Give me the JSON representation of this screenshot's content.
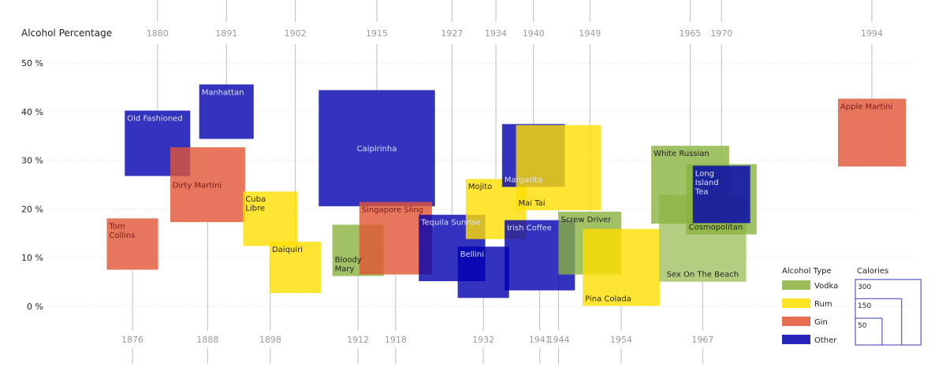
{
  "chart_data": {
    "type": "scatter",
    "title": "",
    "ylabel": "Alcohol Percentage",
    "xlabel": "",
    "yticks": [
      "50 %",
      "40 %",
      "30 %",
      "20 %",
      "10 %",
      "0 %"
    ],
    "ylim": [
      0,
      50
    ],
    "xlim": [
      1866,
      2002
    ],
    "legend": {
      "type_title": "Alcohol Type",
      "size_title": "Calories",
      "types": [
        {
          "key": "vodka",
          "label": "Vodka",
          "color": "#8ab23e"
        },
        {
          "key": "rum",
          "label": "Rum",
          "color": "#ffdf00"
        },
        {
          "key": "gin",
          "label": "Gin",
          "color": "#e05535"
        },
        {
          "key": "other",
          "label": "Other",
          "color": "#0000b0"
        }
      ],
      "sizes": [
        {
          "label": "300",
          "calories": 300
        },
        {
          "label": "150",
          "calories": 150
        },
        {
          "label": "50",
          "calories": 50
        }
      ],
      "position": "bottom-right"
    },
    "points": [
      {
        "name": "Tom Collins",
        "year": 1876,
        "alcohol": 12.8,
        "calories": 40,
        "type": "gin",
        "label_pos": "top",
        "year_label": "bottom"
      },
      {
        "name": "Old Fashioned",
        "year": 1880,
        "alcohol": 33.5,
        "calories": 65,
        "type": "other",
        "label_pos": "top",
        "year_label": "top"
      },
      {
        "name": "Dirty Martini",
        "year": 1888,
        "alcohol": 25.0,
        "calories": 85,
        "type": "gin",
        "label_pos": "center",
        "year_label": "bottom"
      },
      {
        "name": "Manhattan",
        "year": 1891,
        "alcohol": 40.0,
        "calories": 45,
        "type": "other",
        "label_pos": "top",
        "year_label": "top"
      },
      {
        "name": "Cuba Libre",
        "year": 1898,
        "alcohol": 18.0,
        "calories": 45,
        "type": "rum",
        "label_pos": "top",
        "year_label": "bottom"
      },
      {
        "name": "Daiquiri",
        "year": 1902,
        "alcohol": 8.0,
        "calories": 40,
        "type": "rum",
        "label_pos": "top",
        "year_label": "top"
      },
      {
        "name": "Bloody Mary",
        "year": 1912,
        "alcohol": 11.5,
        "calories": 40,
        "type": "vodka",
        "label_pos": "bottom",
        "year_label": "bottom"
      },
      {
        "name": "Caipirinha",
        "year": 1915,
        "alcohol": 32.5,
        "calories": 205,
        "type": "other",
        "label_pos": "center",
        "year_label": "top"
      },
      {
        "name": "Singapore Sling",
        "year": 1918,
        "alcohol": 14.0,
        "calories": 80,
        "type": "gin",
        "label_pos": "top",
        "year_label": "bottom"
      },
      {
        "name": "Tequila Sunrise",
        "year": 1927,
        "alcohol": 12.0,
        "calories": 67,
        "type": "other",
        "label_pos": "top",
        "year_label": "top"
      },
      {
        "name": "Bellini",
        "year": 1932,
        "alcohol": 7.0,
        "calories": 40,
        "type": "other",
        "label_pos": "top",
        "year_label": "bottom"
      },
      {
        "name": "Mojito",
        "year": 1934,
        "alcohol": 20.0,
        "calories": 55,
        "type": "rum",
        "label_pos": "top",
        "year_label": "top"
      },
      {
        "name": "Margarita",
        "year": 1940,
        "alcohol": 31.0,
        "calories": 60,
        "type": "other",
        "label_pos": "bottom",
        "year_label": "top"
      },
      {
        "name": "Irish Coffee",
        "year": 1941,
        "alcohol": 10.5,
        "calories": 75,
        "type": "other",
        "label_pos": "top",
        "year_label": "bottom"
      },
      {
        "name": "Mai Tai",
        "year": 1944,
        "alcohol": 28.5,
        "calories": 110,
        "type": "rum",
        "label_pos": "bottom",
        "year_label": "bottom"
      },
      {
        "name": "Screw Driver",
        "year": 1949,
        "alcohol": 13.0,
        "calories": 60,
        "type": "vodka",
        "label_pos": "top",
        "year_label": "top"
      },
      {
        "name": "Pina Colada",
        "year": 1954,
        "alcohol": 8.0,
        "calories": 90,
        "type": "rum",
        "label_pos": "bottom",
        "year_label": "bottom"
      },
      {
        "name": "White Russian",
        "year": 1965,
        "alcohol": 25.0,
        "calories": 92,
        "type": "vodka",
        "label_pos": "top",
        "year_label": "top"
      },
      {
        "name": "Sex On The Beach",
        "year": 1967,
        "alcohol": 14.0,
        "calories": 115,
        "type": "vodka",
        "label_pos": "bottom",
        "year_label": "bottom",
        "light": true
      },
      {
        "name": "Cosmopolitan",
        "year": 1970,
        "alcohol": 22.0,
        "calories": 75,
        "type": "vodka",
        "label_pos": "bottom",
        "year_label": "top"
      },
      {
        "name": "Long Island Tea",
        "year": 1970,
        "alcohol": 23.0,
        "calories": 50,
        "type": "other",
        "label_pos": "top",
        "year_label": "none"
      },
      {
        "name": "Apple Martini",
        "year": 1994,
        "alcohol": 35.7,
        "calories": 70,
        "type": "gin",
        "label_pos": "top",
        "year_label": "top"
      }
    ]
  }
}
